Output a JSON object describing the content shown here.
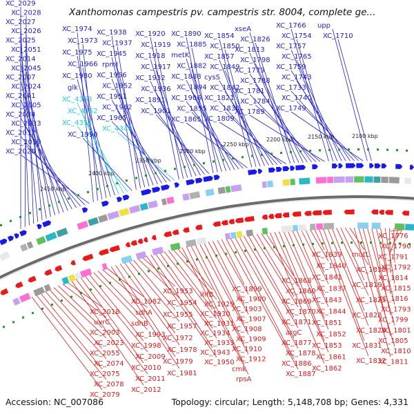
{
  "title": "Xanthomonas campestris pv. campestris str. 8004, complete ge...",
  "accession_text": "Accession: NC_007086",
  "summary_text": "Topology: circular; Length: 5,148,708 bp; Genes: 4,331",
  "colors": {
    "top_label": "#2020d0",
    "top_label_light": "#20c8e0",
    "bottom_label": "#e01818",
    "backbone": "#6a6a6a",
    "tick": "#1a9a1a"
  },
  "scale_ticks": [
    "2100 kbp",
    "2150 kbp",
    "2200 kbp",
    "2250 kbp",
    "2300 kbp",
    "2350 kbp",
    "2400 kbp",
    "2450 kbp"
  ],
  "top_labels": [
    {
      "t": "XC_2029",
      "c": "blue"
    },
    {
      "t": "XC_2028",
      "c": "blue"
    },
    {
      "t": "XC_2027",
      "c": "blue"
    },
    {
      "t": "XC_2026",
      "c": "blue"
    },
    {
      "t": "XC_2025",
      "c": "blue"
    },
    {
      "t": "XC_2051",
      "c": "blue"
    },
    {
      "t": "XC_2014",
      "c": "blue"
    },
    {
      "t": "XC_2045",
      "c": "blue"
    },
    {
      "t": "XC_2007",
      "c": "blue"
    },
    {
      "t": "XC_2024",
      "c": "blue"
    },
    {
      "t": "XC_2041",
      "c": "blue"
    },
    {
      "t": "XC_2005",
      "c": "blue"
    },
    {
      "t": "XC_2034",
      "c": "blue"
    },
    {
      "t": "XC_2033",
      "c": "blue"
    },
    {
      "t": "XC_2032",
      "c": "blue"
    },
    {
      "t": "XC_2059",
      "c": "blue"
    },
    {
      "t": "XC_2020",
      "c": "blue"
    },
    {
      "t": "XC_1974",
      "c": "blue"
    },
    {
      "t": "XC_1973",
      "c": "blue"
    },
    {
      "t": "XC_1975",
      "c": "blue"
    },
    {
      "t": "XC_1966",
      "c": "blue"
    },
    {
      "t": "XC_1980",
      "c": "blue"
    },
    {
      "t": "glk",
      "c": "blue"
    },
    {
      "t": "XC_4353",
      "c": "cyan"
    },
    {
      "t": "XC_4352",
      "c": "cyan"
    },
    {
      "t": "XC_4351",
      "c": "cyan"
    },
    {
      "t": "XC_1990",
      "c": "blue"
    },
    {
      "t": "XC_1938",
      "c": "blue"
    },
    {
      "t": "XC_1937",
      "c": "blue"
    },
    {
      "t": "XC_1945",
      "c": "blue"
    },
    {
      "t": "rpmJ",
      "c": "blue"
    },
    {
      "t": "XC_1956",
      "c": "blue"
    },
    {
      "t": "XC_1952",
      "c": "blue"
    },
    {
      "t": "XC_1951",
      "c": "blue"
    },
    {
      "t": "XC_1962",
      "c": "blue"
    },
    {
      "t": "XC_1965",
      "c": "blue"
    },
    {
      "t": "XC_4349",
      "c": "cyan"
    },
    {
      "t": "XC_1920",
      "c": "blue"
    },
    {
      "t": "XC_1919",
      "c": "blue"
    },
    {
      "t": "XC_1918",
      "c": "blue"
    },
    {
      "t": "XC_1917",
      "c": "blue"
    },
    {
      "t": "XC_1932",
      "c": "blue"
    },
    {
      "t": "XC_1936",
      "c": "blue"
    },
    {
      "t": "XC_1891",
      "c": "blue"
    },
    {
      "t": "XC_1901",
      "c": "blue"
    },
    {
      "t": "XC_1890",
      "c": "blue"
    },
    {
      "t": "XC_1885",
      "c": "blue"
    },
    {
      "t": "metK",
      "c": "blue"
    },
    {
      "t": "XC_1882",
      "c": "blue"
    },
    {
      "t": "XC_1888",
      "c": "blue"
    },
    {
      "t": "XC_1894",
      "c": "blue"
    },
    {
      "t": "XC_1906",
      "c": "blue"
    },
    {
      "t": "XC_1855",
      "c": "blue"
    },
    {
      "t": "XC_1865",
      "c": "blue"
    },
    {
      "t": "XC_1854",
      "c": "blue"
    },
    {
      "t": "XC_1850",
      "c": "blue"
    },
    {
      "t": "XC_1857",
      "c": "blue"
    },
    {
      "t": "XC_1849",
      "c": "blue"
    },
    {
      "t": "cysS",
      "c": "blue"
    },
    {
      "t": "XC_1842",
      "c": "blue"
    },
    {
      "t": "XC_1821",
      "c": "blue"
    },
    {
      "t": "XC_1830",
      "c": "blue"
    },
    {
      "t": "XC_1809",
      "c": "blue"
    },
    {
      "t": "xseA",
      "c": "blue"
    },
    {
      "t": "XC_1826",
      "c": "blue"
    },
    {
      "t": "XC_1813",
      "c": "blue"
    },
    {
      "t": "XC_1798",
      "c": "blue"
    },
    {
      "t": "XC_1779",
      "c": "blue"
    },
    {
      "t": "XC_1788",
      "c": "blue"
    },
    {
      "t": "XC_1781",
      "c": "blue"
    },
    {
      "t": "XC_1784",
      "c": "blue"
    },
    {
      "t": "XC_1789",
      "c": "blue"
    },
    {
      "t": "XC_1766",
      "c": "blue"
    },
    {
      "t": "XC_1754",
      "c": "blue"
    },
    {
      "t": "XC_1757",
      "c": "blue"
    },
    {
      "t": "XC_1765",
      "c": "blue"
    },
    {
      "t": "XC_1759",
      "c": "blue"
    },
    {
      "t": "XC_1743",
      "c": "blue"
    },
    {
      "t": "XC_1733",
      "c": "blue"
    },
    {
      "t": "XC_1740",
      "c": "blue"
    },
    {
      "t": "XC_1749",
      "c": "blue"
    },
    {
      "t": "upp",
      "c": "blue"
    },
    {
      "t": "XC_1710",
      "c": "blue"
    }
  ],
  "bottom_labels": [
    "XC_1776",
    "XC_1790",
    "XC_1791",
    "XC_1792",
    "XC_1814",
    "XC_1815",
    "XC_1816",
    "XC_1793",
    "XC_1799",
    "XC_1801",
    "XC_1805",
    "XC_1810",
    "XC_1811",
    "mutL",
    "XC_1818",
    "XC_1819",
    "XC_1823",
    "XC_1828",
    "XC_1829",
    "XC_1831",
    "XC_1832",
    "XC_1839",
    "XC_1840",
    "XC_1841",
    "XC_1837",
    "XC_1843",
    "XC_1844",
    "XC_1851",
    "XC_1852",
    "XC_1853",
    "XC_1861",
    "XC_1862",
    "XC_1868",
    "XC_1860",
    "XC_1869",
    "XC_1870",
    "XC_1871",
    "argC",
    "XC_1877",
    "XC_1878",
    "XC_1886",
    "XC_1887",
    "XC_1899",
    "XC_1900",
    "XC_1903",
    "XC_1907",
    "XC_1908",
    "XC_1909",
    "XC_1910",
    "XC_1912",
    "cmk",
    "rpsA",
    "ihfB",
    "XC_1929",
    "XC_1930",
    "XC_1931",
    "XC_1934",
    "XC_1933",
    "XC_1943",
    "XC_1950",
    "XC_1953",
    "XC_1954",
    "XC_1955",
    "XC_1957",
    "XC_1972",
    "XC_1978",
    "XC_1979",
    "XC_1981",
    "XC_1982",
    "sdhA",
    "sdhB",
    "XC_1993",
    "XC_1998",
    "XC_2009",
    "XC_2010",
    "XC_2011",
    "XC_2012",
    "XC_2018",
    "uvrC",
    "XC_2003",
    "XC_2023",
    "XC_2055",
    "XC_2074",
    "XC_2075",
    "XC_2078",
    "XC_2079"
  ]
}
